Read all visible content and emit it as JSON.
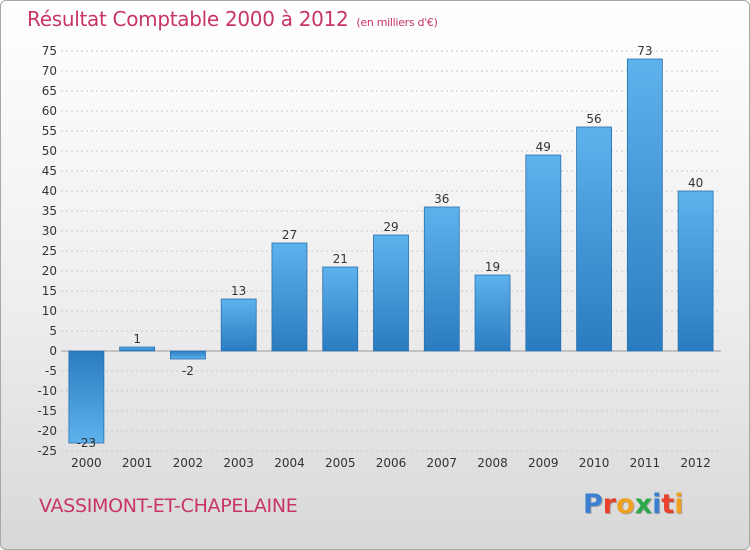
{
  "title": "Résultat Comptable 2000 à 2012",
  "subtitle": "(en milliers d'€)",
  "town": "VASSIMONT-ET-CHAPELAINE",
  "logo": "Proxiti",
  "chart_data": {
    "type": "bar",
    "title": "Résultat Comptable 2000 à 2012",
    "subtitle": "(en milliers d'€)",
    "categories": [
      "2000",
      "2001",
      "2002",
      "2003",
      "2004",
      "2005",
      "2006",
      "2007",
      "2008",
      "2009",
      "2010",
      "2011",
      "2012"
    ],
    "values": [
      -23,
      1,
      -2,
      13,
      27,
      21,
      29,
      36,
      19,
      49,
      56,
      73,
      40
    ],
    "ylim": [
      -25,
      75
    ],
    "yticks": [
      -25,
      -20,
      -15,
      -10,
      -5,
      0,
      5,
      10,
      15,
      20,
      25,
      30,
      35,
      40,
      45,
      50,
      55,
      60,
      65,
      70,
      75
    ],
    "grid": true,
    "bar_color": "#3b8fd4"
  }
}
